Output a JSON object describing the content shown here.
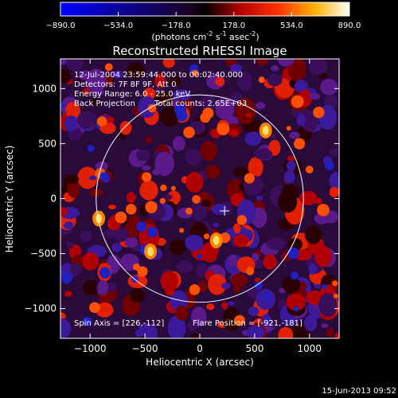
{
  "colorbar": {
    "ticks": [
      "-890.0",
      "-534.0",
      "-178.0",
      "178.0",
      "534.0",
      "890.0"
    ],
    "range": [
      -890,
      890
    ],
    "units_text": "(photons cm",
    "units_sup1": "-2",
    "units_mid": " s",
    "units_sup2": "-1",
    "units_tail": " asec",
    "units_sup3": "-2",
    "units_close": ")",
    "stops": [
      "#0000ff",
      "#000000",
      "#ff0000",
      "#ffa000",
      "#ffffff"
    ]
  },
  "chart_data": {
    "type": "heatmap",
    "title": "Reconstructed RHESSI Image",
    "xlabel": "Heliocentric X (arcsec)",
    "ylabel": "Heliocentric Y (arcsec)",
    "xlim": [
      -1270,
      1270
    ],
    "ylim": [
      -1270,
      1270
    ],
    "xticks": [
      -1000,
      -500,
      0,
      500,
      1000
    ],
    "yticks": [
      -1000,
      -500,
      0,
      500,
      1000
    ],
    "xtick_labels": [
      "−1000",
      "−500",
      "0",
      "500",
      "1000"
    ],
    "ytick_labels": [
      "−1000",
      "−500",
      "0",
      "500",
      "1000"
    ],
    "solar_limb": {
      "center": [
        0,
        0
      ],
      "radius_arcsec": 945
    },
    "cross_marker": [
      226,
      -112
    ],
    "hot_spots": [
      {
        "x": -921,
        "y": -181
      },
      {
        "x": 600,
        "y": 620
      },
      {
        "x": 150,
        "y": -380
      },
      {
        "x": -450,
        "y": -480
      }
    ],
    "annotations": {
      "time": "12-Jul-2004 23:59:44.000 to 00:02:40.000",
      "detectors": "Detectors: 7F 8F 9F, Att 0",
      "energy": "Energy Range: 6.0 - 25.0 keV",
      "method": "Back Projection",
      "counts": "Total counts: 2.65E+03",
      "spin_axis": "Spin Axis = [226,-112]",
      "flare_position": "Flare Position = [-921,-181]"
    }
  },
  "footer_date": "15-Jun-2013 09:52"
}
